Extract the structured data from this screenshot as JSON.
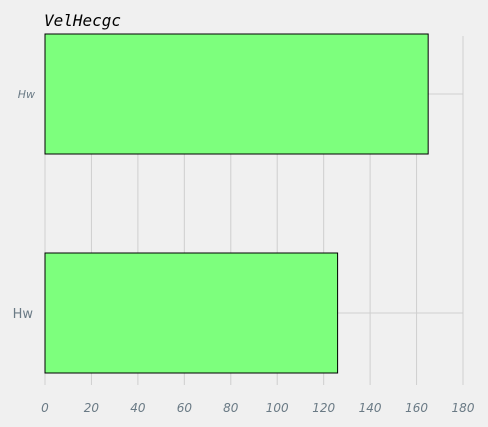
{
  "chart_data": {
    "type": "bar",
    "orientation": "horizontal",
    "title": "VelHecgc",
    "xlabel": "",
    "ylabel": "",
    "categories": [
      "Hw",
      "Hw"
    ],
    "values": [
      126,
      165
    ],
    "xlim": [
      0,
      180
    ],
    "x_ticks": [
      "0",
      "20",
      "40",
      "60",
      "80",
      "100",
      "120",
      "140",
      "160",
      "180"
    ],
    "grid": true,
    "bar_color": "#7dff7d",
    "bar_edge_color": "#000000"
  }
}
